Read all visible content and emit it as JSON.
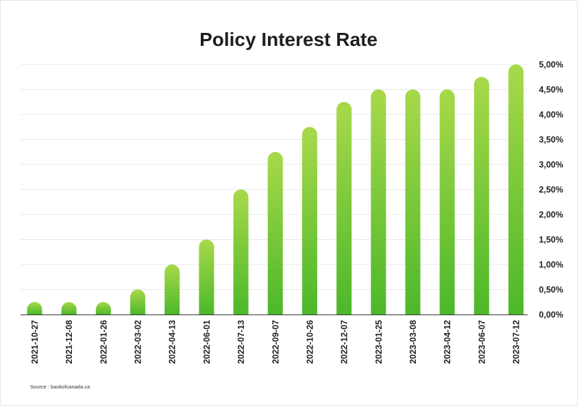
{
  "source": "Source : bankofcanada.ca",
  "colors": {
    "bar_top": "#a8d94a",
    "bar_bottom": "#4cb82a",
    "grid": "#e8e8e8",
    "axis": "#333333"
  },
  "chart_data": {
    "type": "bar",
    "title": "Policy Interest Rate",
    "xlabel": "",
    "ylabel": "",
    "ylim": [
      0,
      5
    ],
    "y_ticks": [
      0,
      0.5,
      1,
      1.5,
      2,
      2.5,
      3,
      3.5,
      4,
      4.5,
      5
    ],
    "y_tick_labels": [
      "0,00%",
      "0,50%",
      "1,00%",
      "1,50%",
      "2,00%",
      "2,50%",
      "3,00%",
      "3,50%",
      "4,00%",
      "4,50%",
      "5,00%"
    ],
    "y_axis_side": "right",
    "grid": true,
    "categories": [
      "2021-10-27",
      "2021-12-08",
      "2022-01-26",
      "2022-03-02",
      "2022-04-13",
      "2022-06-01",
      "2022-07-13",
      "2022-09-07",
      "2022-10-26",
      "2022-12-07",
      "2023-01-25",
      "2023-03-08",
      "2023-04-12",
      "2023-06-07",
      "2023-07-12"
    ],
    "values": [
      0.25,
      0.25,
      0.25,
      0.5,
      1.0,
      1.5,
      2.5,
      3.25,
      3.75,
      4.25,
      4.5,
      4.5,
      4.5,
      4.75,
      5.0
    ]
  }
}
